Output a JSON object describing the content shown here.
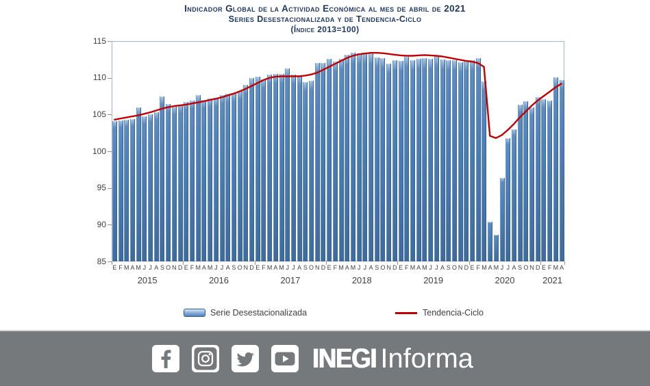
{
  "title": {
    "line1": "Indicador Global de la Actividad Económica al mes de abril de 2021",
    "line2": "Series Desestacionalizada y de Tendencia-Ciclo",
    "line3": "(Índice 2013=100)"
  },
  "chart_data": {
    "type": "bar",
    "title": "Indicador Global de la Actividad Económica al mes de abril de 2021",
    "subtitle": "Series Desestacionalizada y de Tendencia-Ciclo (Índice 2013=100)",
    "ylim": [
      85,
      115
    ],
    "yticks": [
      115,
      110,
      105,
      100,
      95,
      90,
      85
    ],
    "grid": "off",
    "legend_position": "bottom",
    "month_letters": [
      "E",
      "F",
      "M",
      "A",
      "M",
      "J",
      "J",
      "A",
      "S",
      "O",
      "N",
      "D"
    ],
    "years": [
      {
        "label": "2015",
        "months": 12
      },
      {
        "label": "2016",
        "months": 12
      },
      {
        "label": "2017",
        "months": 12
      },
      {
        "label": "2018",
        "months": 12
      },
      {
        "label": "2019",
        "months": 12
      },
      {
        "label": "2020",
        "months": 12
      },
      {
        "label": "2021",
        "months": 4
      }
    ],
    "series": [
      {
        "name": "Serie Desestacionalizada",
        "type": "bar",
        "color": "#4f81bd",
        "values": [
          104.1,
          104.2,
          104.3,
          104.4,
          106.0,
          104.8,
          105.0,
          105.3,
          107.5,
          106.4,
          106.1,
          106.3,
          106.7,
          106.9,
          107.6,
          107.0,
          107.2,
          107.3,
          107.6,
          107.8,
          107.9,
          108.2,
          109.0,
          110.0,
          110.2,
          109.8,
          110.4,
          110.5,
          110.5,
          111.3,
          110.4,
          110.3,
          109.4,
          109.6,
          112.0,
          112.0,
          112.6,
          112.2,
          112.6,
          113.1,
          113.4,
          113.3,
          113.4,
          113.3,
          112.8,
          112.7,
          111.9,
          112.4,
          112.3,
          112.9,
          112.4,
          112.6,
          112.7,
          112.6,
          113.0,
          112.5,
          112.4,
          112.4,
          112.1,
          112.3,
          112.4,
          112.7,
          109.5,
          90.4,
          88.6,
          96.4,
          101.8,
          103.0,
          106.3,
          106.8,
          106.0,
          107.4,
          107.1,
          106.9,
          110.1,
          109.7
        ]
      },
      {
        "name": "Tendencia-Ciclo",
        "type": "line",
        "color": "#c00000",
        "values": [
          104.3,
          104.45,
          104.6,
          104.75,
          104.9,
          105.1,
          105.3,
          105.55,
          105.8,
          106.0,
          106.15,
          106.25,
          106.35,
          106.5,
          106.65,
          106.8,
          107.0,
          107.15,
          107.35,
          107.6,
          107.85,
          108.15,
          108.5,
          108.9,
          109.3,
          109.7,
          110.0,
          110.15,
          110.2,
          110.2,
          110.2,
          110.2,
          110.3,
          110.45,
          110.7,
          111.1,
          111.5,
          111.9,
          112.3,
          112.7,
          113.0,
          113.2,
          113.3,
          113.4,
          113.4,
          113.35,
          113.25,
          113.15,
          113.05,
          113.0,
          113.0,
          113.05,
          113.1,
          113.05,
          113.0,
          112.9,
          112.75,
          112.6,
          112.45,
          112.3,
          112.2,
          112.0,
          111.5,
          102.1,
          101.8,
          102.2,
          102.9,
          103.7,
          104.6,
          105.4,
          106.2,
          106.9,
          107.5,
          108.1,
          108.7,
          109.2
        ]
      }
    ]
  },
  "legend": {
    "bar_label": "Serie Desestacionalizada",
    "line_label": "Tendencia-Ciclo"
  },
  "footer": {
    "icons": [
      "facebook-icon",
      "instagram-icon",
      "twitter-icon",
      "youtube-icon"
    ],
    "brand_bold": "INEGI",
    "brand_light": "Informa"
  },
  "colors": {
    "title_text": "#1f3864",
    "bar_fill": "#4f81bd",
    "trend_line": "#c00000",
    "axis_border": "#a3b6ca",
    "axis_text": "#404040",
    "footer_background": "#76797c"
  }
}
